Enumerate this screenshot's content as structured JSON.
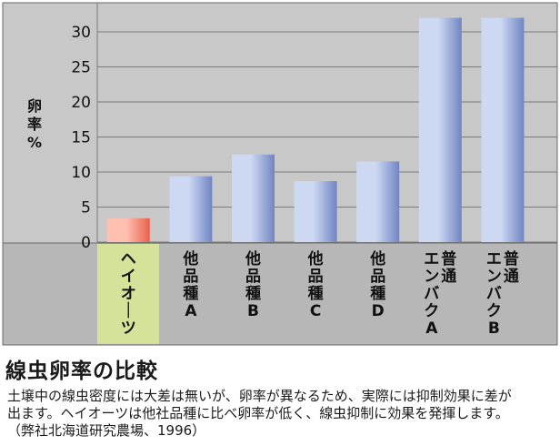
{
  "chart_data": {
    "type": "bar",
    "ylabel": "卵率%",
    "ylim": [
      0,
      32
    ],
    "yticks": [
      "0",
      "5",
      "10",
      "15",
      "20",
      "25",
      "30"
    ],
    "categories": [
      "ヘイオーツ",
      "他品種A",
      "他品種B",
      "他品種C",
      "他品種D",
      "普通エンバクA",
      "普通エンバクB"
    ],
    "category_lines": [
      [
        "ヘイオーツ"
      ],
      [
        "他品種A"
      ],
      [
        "他品種B"
      ],
      [
        "他品種C"
      ],
      [
        "他品種D"
      ],
      [
        "普通",
        "エンバクA"
      ],
      [
        "普通",
        "エンバクB"
      ]
    ],
    "values": [
      3.4,
      9.4,
      12.5,
      8.7,
      11.5,
      32,
      32
    ],
    "highlight_index": 0,
    "colors": {
      "plot_bg": "#c8c8c8",
      "label_bg": "#b7b7b7",
      "highlight_label_bg": "#d4e29a",
      "bar_light": "#cdd8f3",
      "bar_dark": "#7085c2",
      "highlight_light": "#ffc0b2",
      "highlight_dark": "#e8614a",
      "grid": "#7a7a7a"
    }
  },
  "text": {
    "heading": "線虫卵率の比較",
    "body_lines": [
      "土壌中の線虫密度には大差は無いが、卵率が異なるため、実際には抑制効果に差が",
      "出ます。ヘイオーツは他社品種に比べ卵率が低く、線虫抑制に効果を発揮します。",
      "（弊社北海道研究農場、1996）"
    ]
  }
}
